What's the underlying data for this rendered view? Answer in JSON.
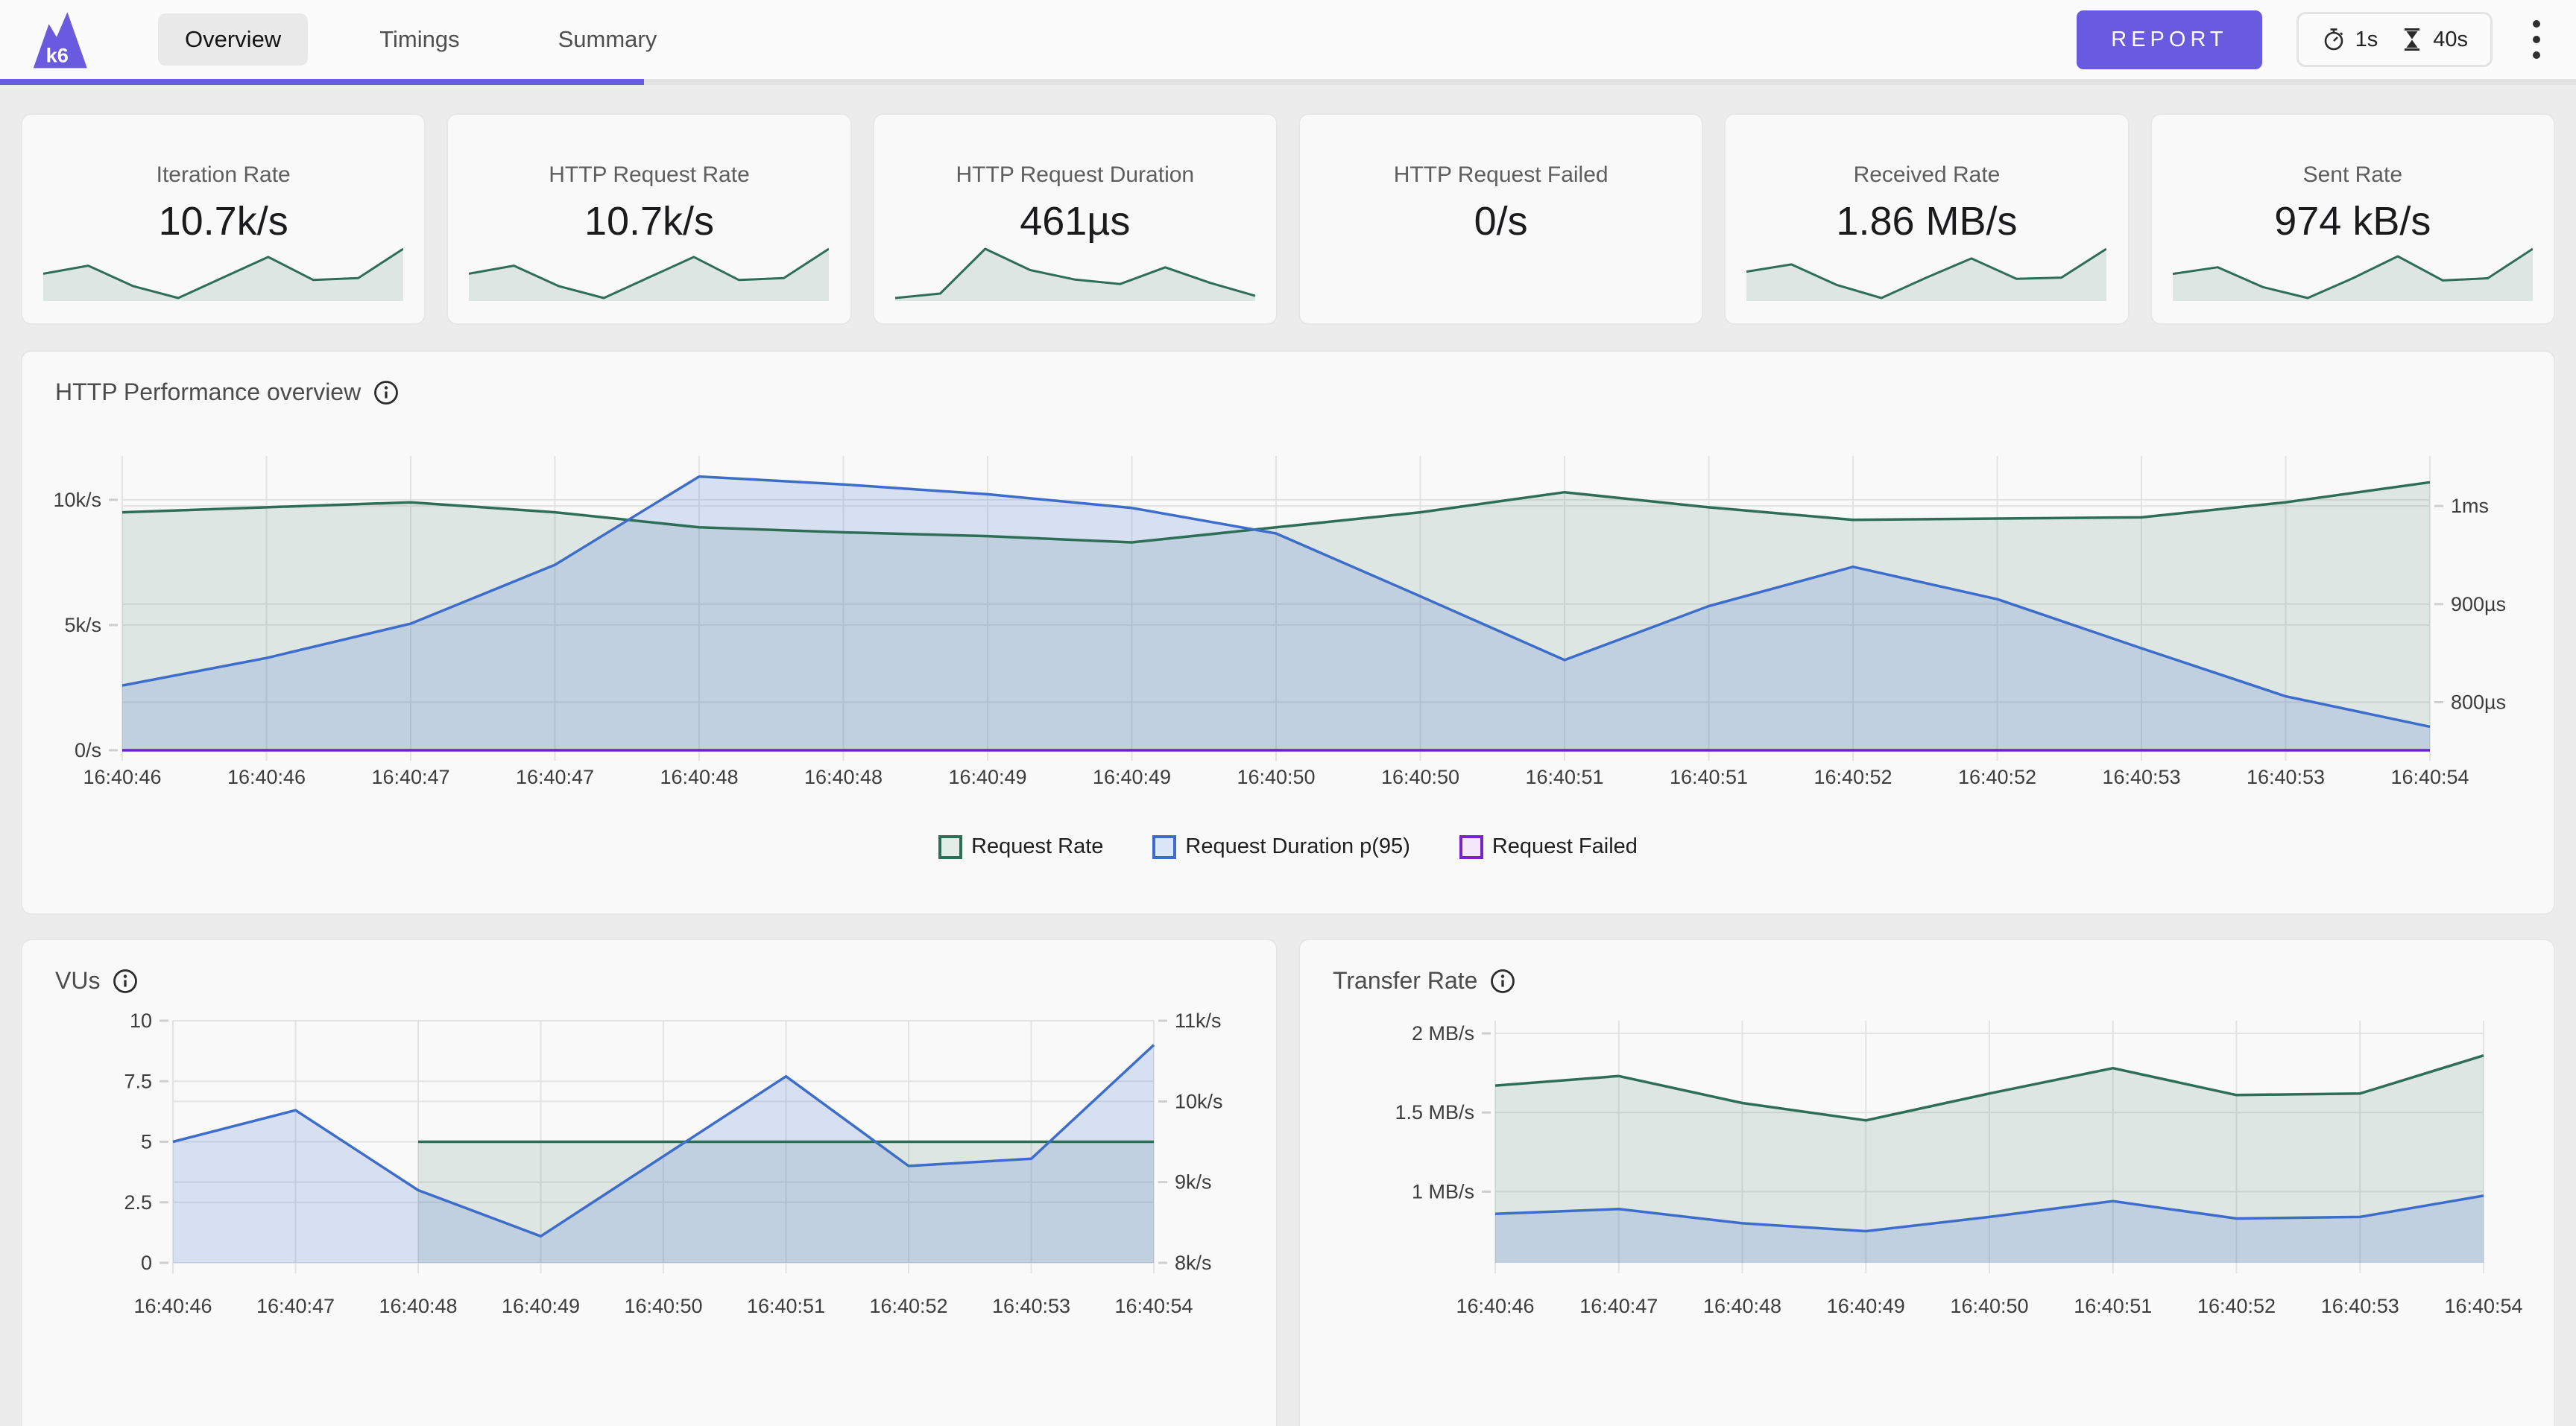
{
  "colors": {
    "accent": "#6a5ae0",
    "grid": "#e3e3e3"
  },
  "header": {
    "logo_text": "k6",
    "tabs": [
      {
        "label": "Overview",
        "active": true
      },
      {
        "label": "Timings",
        "active": false
      },
      {
        "label": "Summary",
        "active": false
      }
    ],
    "report_label": "REPORT",
    "timer": {
      "elapsed": "1s",
      "total": "40s"
    },
    "progress_percent": 25
  },
  "cards": [
    {
      "label": "Iteration Rate",
      "value": "10.7k/s",
      "spark": [
        9.5,
        9.89,
        8.9,
        8.33,
        9.32,
        10.31,
        9.2,
        9.29,
        10.7
      ]
    },
    {
      "label": "HTTP Request Rate",
      "value": "10.7k/s",
      "spark": [
        9.5,
        9.89,
        8.9,
        8.33,
        9.32,
        10.31,
        9.2,
        9.29,
        10.7
      ]
    },
    {
      "label": "HTTP Request Duration",
      "value": "461µs",
      "spark": [
        432,
        440,
        520,
        482,
        465,
        457,
        487,
        459,
        436
      ]
    },
    {
      "label": "HTTP Request Failed",
      "value": "0/s",
      "spark": null
    },
    {
      "label": "Received Rate",
      "value": "1.86 MB/s",
      "spark": [
        1.67,
        1.73,
        1.56,
        1.45,
        1.62,
        1.78,
        1.61,
        1.62,
        1.86
      ]
    },
    {
      "label": "Sent Rate",
      "value": "974 kB/s",
      "spark": [
        0.86,
        0.89,
        0.8,
        0.75,
        0.84,
        0.94,
        0.83,
        0.84,
        0.974
      ]
    }
  ],
  "chart_data": [
    {
      "id": "main",
      "type": "area",
      "title": "HTTP Performance overview",
      "x_labels": [
        "16:40:46",
        "16:40:46",
        "16:40:47",
        "16:40:47",
        "16:40:48",
        "16:40:48",
        "16:40:49",
        "16:40:49",
        "16:40:50",
        "16:40:50",
        "16:40:51",
        "16:40:51",
        "16:40:52",
        "16:40:52",
        "16:40:53",
        "16:40:53",
        "16:40:54"
      ],
      "left_axis": {
        "min": 0,
        "max": 11.75,
        "unit": "k/s",
        "ticks": [
          {
            "v": 0,
            "label": "0/s"
          },
          {
            "v": 5,
            "label": "5k/s"
          },
          {
            "v": 10,
            "label": "10k/s"
          }
        ]
      },
      "right_axis": {
        "min": 751,
        "max": 1051,
        "unit": "µs",
        "ticks": [
          {
            "v": 800,
            "label": "800µs"
          },
          {
            "v": 900,
            "label": "900µs"
          },
          {
            "v": 1000,
            "label": "1ms"
          }
        ]
      },
      "series": [
        {
          "name": "Request Rate",
          "axis": "left",
          "color": "#2e6e57",
          "fill": "rgba(46,110,87,0.13)",
          "values": [
            9.5,
            9.7,
            9.9,
            9.5,
            8.9,
            8.7,
            8.55,
            8.3,
            8.9,
            9.5,
            10.3,
            9.7,
            9.2,
            9.25,
            9.3,
            9.9,
            10.7
          ]
        },
        {
          "name": "Request Duration p(95)",
          "axis": "right",
          "color": "#3d6dcc",
          "fill": "rgba(61,109,204,0.18)",
          "values": [
            817,
            845,
            880,
            940,
            1030,
            1022,
            1012,
            998,
            972,
            908,
            843,
            898,
            938,
            905,
            855,
            806,
            775
          ]
        },
        {
          "name": "Request Failed",
          "axis": "left",
          "color": "#6d21c8",
          "fill": "none",
          "values": [
            0,
            0,
            0,
            0,
            0,
            0,
            0,
            0,
            0,
            0,
            0,
            0,
            0,
            0,
            0,
            0,
            0
          ]
        }
      ],
      "legend": [
        {
          "label": "Request Rate",
          "color": "#2e6e57",
          "fill": "#e3ede8"
        },
        {
          "label": "Request Duration p(95)",
          "color": "#3d6dcc",
          "fill": "#dbe7f8"
        },
        {
          "label": "Request Failed",
          "color": "#7a22ce",
          "fill": "#f3e8fa"
        }
      ]
    },
    {
      "id": "vus",
      "type": "area",
      "title": "VUs",
      "x_labels": [
        "16:40:46",
        "16:40:47",
        "16:40:48",
        "16:40:49",
        "16:40:50",
        "16:40:51",
        "16:40:52",
        "16:40:53",
        "16:40:54"
      ],
      "left_axis": {
        "min": 0,
        "max": 10,
        "unit": "",
        "ticks": [
          {
            "v": 0,
            "label": "0"
          },
          {
            "v": 2.5,
            "label": "2.5"
          },
          {
            "v": 5,
            "label": "5"
          },
          {
            "v": 7.5,
            "label": "7.5"
          },
          {
            "v": 10,
            "label": "10"
          }
        ]
      },
      "right_axis": {
        "min": 8,
        "max": 11,
        "unit": "k/s",
        "ticks": [
          {
            "v": 8,
            "label": "8k/s"
          },
          {
            "v": 9,
            "label": "9k/s"
          },
          {
            "v": 10,
            "label": "10k/s"
          },
          {
            "v": 11,
            "label": "11k/s"
          }
        ]
      },
      "series": [
        {
          "name": "VUs",
          "axis": "left",
          "color": "#2e6e57",
          "fill": "rgba(46,110,87,0.13)",
          "values": [
            null,
            null,
            5,
            5,
            5,
            5,
            5,
            5,
            5
          ]
        },
        {
          "name": "Request Rate",
          "axis": "right",
          "color": "#3d6dcc",
          "fill": "rgba(61,109,204,0.18)",
          "values": [
            9.5,
            9.89,
            8.9,
            8.33,
            9.32,
            10.31,
            9.2,
            9.29,
            10.7
          ]
        }
      ]
    },
    {
      "id": "transfer",
      "type": "area",
      "title": "Transfer Rate",
      "x_labels": [
        "16:40:46",
        "16:40:47",
        "16:40:48",
        "16:40:49",
        "16:40:50",
        "16:40:51",
        "16:40:52",
        "16:40:53",
        "16:40:54"
      ],
      "left_axis": {
        "min": 0.55,
        "max": 2.08,
        "unit": "MB/s",
        "ticks": [
          {
            "v": 1,
            "label": "1 MB/s"
          },
          {
            "v": 1.5,
            "label": "1.5 MB/s"
          },
          {
            "v": 2,
            "label": "2 MB/s"
          }
        ]
      },
      "series": [
        {
          "name": "Received Rate",
          "axis": "left",
          "color": "#2e6e57",
          "fill": "rgba(46,110,87,0.13)",
          "values": [
            1.67,
            1.73,
            1.56,
            1.45,
            1.62,
            1.78,
            1.61,
            1.62,
            1.86
          ]
        },
        {
          "name": "Sent Rate",
          "axis": "left",
          "color": "#3d6dcc",
          "fill": "rgba(61,109,204,0.18)",
          "values": [
            0.86,
            0.89,
            0.8,
            0.75,
            0.84,
            0.94,
            0.83,
            0.84,
            0.974
          ]
        }
      ]
    }
  ]
}
